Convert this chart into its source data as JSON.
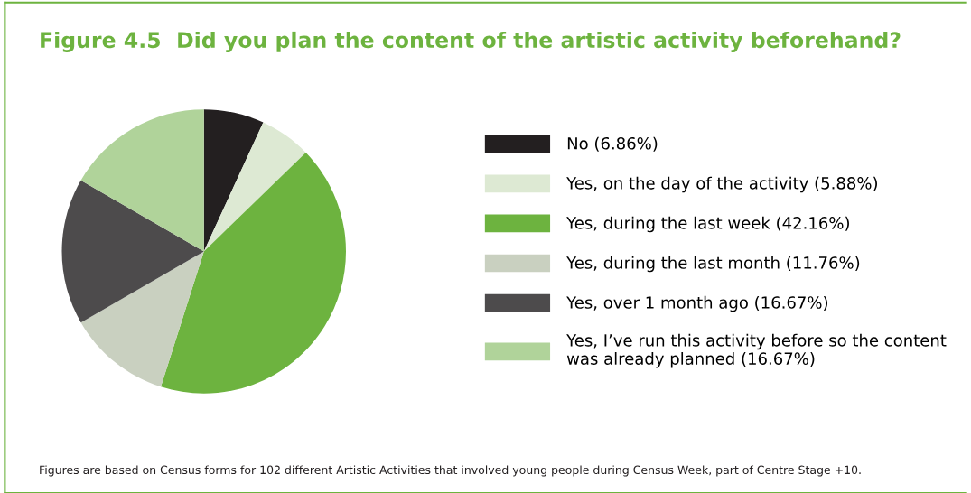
{
  "chart_data": {
    "type": "pie",
    "title": "Figure 4.5  Did you plan the content of the artistic activity beforehand?",
    "categories": [
      "No",
      "Yes, on the day of the activity",
      "Yes, during the last week",
      "Yes, during the last month",
      "Yes, over 1 month ago",
      "Yes, I’ve run this activity before so the content\nwas already planned"
    ],
    "values": [
      6.86,
      5.88,
      42.16,
      11.76,
      16.67,
      16.67
    ],
    "value_labels": [
      "(6.86%)",
      "(5.88%)",
      "(42.16%)",
      "(11.76%)",
      "(16.67%)",
      "(16.67%)"
    ],
    "colors": [
      "#231f20",
      "#dde9d3",
      "#6db33f",
      "#c9d0c0",
      "#4d4b4c",
      "#b0d39a"
    ],
    "legend": "right",
    "annotations": [
      "Figures are based on Census forms for 102 different Artistic Activities that involved young people during Census Week, part of Centre Stage +10."
    ]
  }
}
